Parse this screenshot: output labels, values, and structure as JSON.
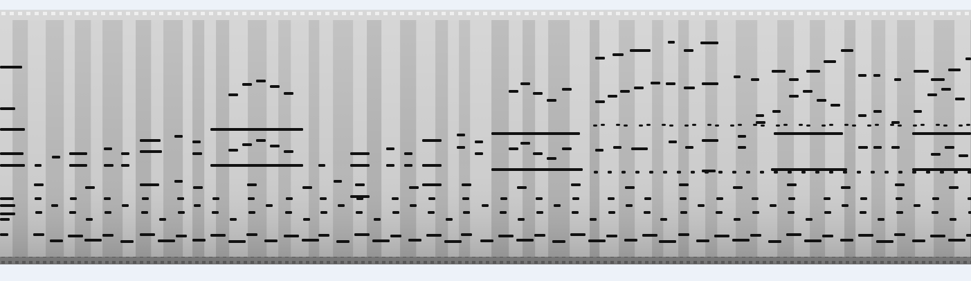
{
  "image": {
    "subject": "piano-roll",
    "colors": {
      "page_background": "#edf2f9",
      "paper_light": "#cfcfcf",
      "paper_dark": "#a9a9a9",
      "hole": "#111111",
      "top_edge": "#e3e3e3",
      "bottom_edge": "#6f6f6f"
    }
  }
}
